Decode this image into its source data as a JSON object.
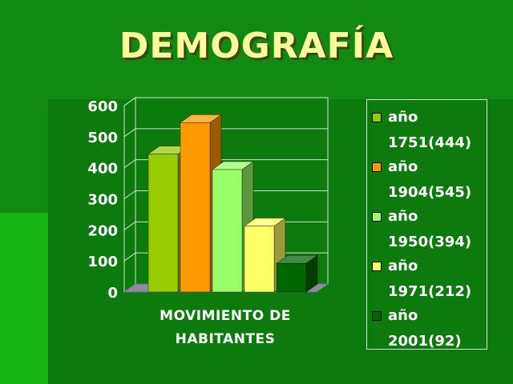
{
  "title": "DEMOGRAFÍA",
  "chart_data": {
    "type": "bar",
    "categories": [
      "MOVIMIENTO DE\nHABITANTES"
    ],
    "xlabel": "MOVIMIENTO DE\nHABITANTES",
    "ylim": [
      0,
      600
    ],
    "yticks": [
      "0",
      "100",
      "200",
      "300",
      "400",
      "500",
      "600"
    ],
    "grid": true,
    "legend_position": "right",
    "style": "3d",
    "series": [
      {
        "name": "año 1751(444)",
        "value": 444,
        "color": "#99cc00"
      },
      {
        "name": "año 1904(545)",
        "value": 545,
        "color": "#ff9900"
      },
      {
        "name": "año 1950(394)",
        "value": 394,
        "color": "#99ff66"
      },
      {
        "name": "año 1971(212)",
        "value": 212,
        "color": "#ffff66"
      },
      {
        "name": "año 2001(92)",
        "value": 92,
        "color": "#006600"
      }
    ]
  },
  "legend": [
    {
      "label": "año\n1751(444)",
      "color": "#99cc00"
    },
    {
      "label": "año\n1904(545)",
      "color": "#ff9900"
    },
    {
      "label": "año\n1950(394)",
      "color": "#99ff66"
    },
    {
      "label": "año\n1971(212)",
      "color": "#ffff66"
    },
    {
      "label": "año\n2001(92)",
      "color": "#006600"
    }
  ]
}
